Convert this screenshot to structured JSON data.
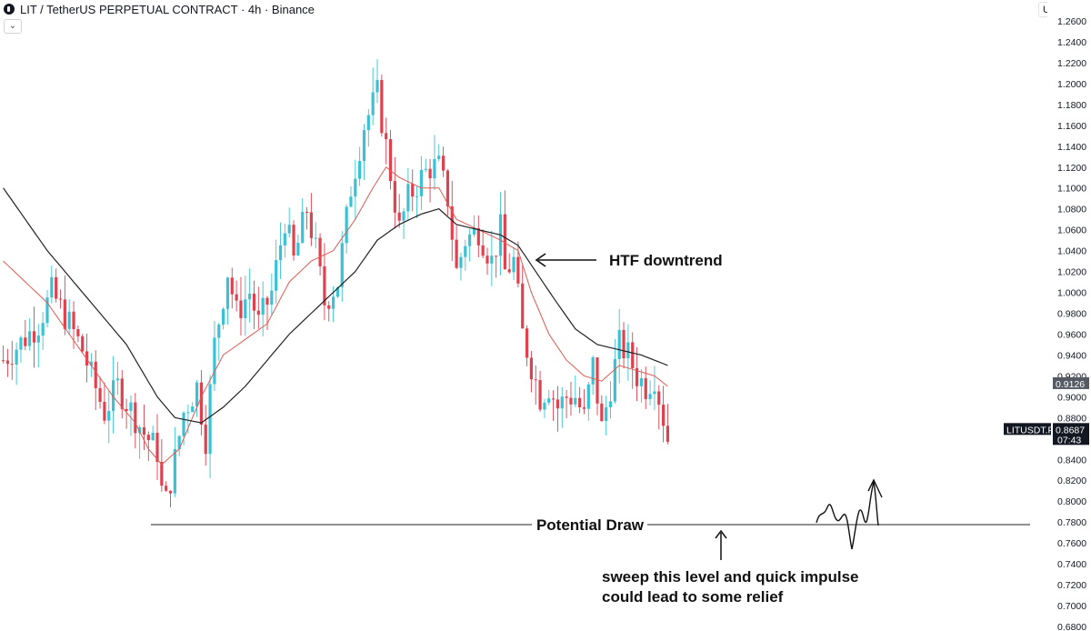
{
  "header": {
    "title": "LIT / TetherUS PERPETUAL CONTRACT · 4h · Binance",
    "collapse_icon": "chevron-down-icon",
    "currency": "USDT ⌄"
  },
  "price_labels": {
    "last_price": "0.9126",
    "symbol": "LITUSDT.P",
    "current_price": "0.8687",
    "countdown": "07:43"
  },
  "annotations": {
    "trend_label": "HTF downtrend",
    "level_label": "Potential Draw",
    "note_line1": "sweep this level and quick impulse",
    "note_line2": "could lead to some relief"
  },
  "colors": {
    "up": "#3ac2d4",
    "down": "#e0414f",
    "ma_fast": "#e05a52",
    "ma_slow": "#222222"
  },
  "chart_data": {
    "type": "candlestick",
    "ylim": [
      0.68,
      1.26
    ],
    "yticks": [
      "1.2600",
      "1.2400",
      "1.2200",
      "1.2000",
      "1.1800",
      "1.1600",
      "1.1400",
      "1.1200",
      "1.1000",
      "1.0800",
      "1.0600",
      "1.0400",
      "1.0200",
      "1.0000",
      "0.9800",
      "0.9600",
      "0.9400",
      "0.9200",
      "0.9000",
      "0.8800",
      "0.8600",
      "0.8400",
      "0.8200",
      "0.8000",
      "0.7800",
      "0.7600",
      "0.7400",
      "0.7200",
      "0.7000",
      "0.6800"
    ],
    "close_path": [
      [
        0,
        0.935
      ],
      [
        4,
        0.952
      ],
      [
        8,
        0.97
      ],
      [
        11,
        1.0
      ],
      [
        15,
        0.97
      ],
      [
        18,
        0.945
      ],
      [
        20,
        0.92
      ],
      [
        23,
        0.885
      ],
      [
        26,
        0.91
      ],
      [
        30,
        0.88
      ],
      [
        32,
        0.865
      ],
      [
        35,
        0.848
      ],
      [
        36,
        0.81
      ],
      [
        37,
        0.8
      ],
      [
        39,
        0.84
      ],
      [
        41,
        0.885
      ],
      [
        44,
        0.91
      ],
      [
        46,
        0.86
      ],
      [
        48,
        0.95
      ],
      [
        51,
        1.02
      ],
      [
        53,
        0.98
      ],
      [
        56,
        1.0
      ],
      [
        58,
        0.97
      ],
      [
        61,
        1.0
      ],
      [
        64,
        1.07
      ],
      [
        66,
        1.03
      ],
      [
        69,
        1.08
      ],
      [
        71,
        1.04
      ],
      [
        73,
        0.99
      ],
      [
        76,
        1.01
      ],
      [
        79,
        1.1
      ],
      [
        82,
        1.16
      ],
      [
        85,
        1.19
      ],
      [
        87,
        1.14
      ],
      [
        90,
        1.06
      ],
      [
        92,
        1.09
      ],
      [
        95,
        1.11
      ],
      [
        97,
        1.12
      ],
      [
        99,
        1.12
      ],
      [
        101,
        1.09
      ],
      [
        103,
        1.02
      ],
      [
        105,
        1.05
      ],
      [
        108,
        1.06
      ],
      [
        111,
        1.03
      ],
      [
        113,
        1.06
      ],
      [
        114,
        1.02
      ],
      [
        116,
        1.03
      ],
      [
        118,
        0.96
      ],
      [
        120,
        0.93
      ],
      [
        122,
        0.9
      ],
      [
        124,
        0.91
      ],
      [
        126,
        0.89
      ],
      [
        128,
        0.9
      ],
      [
        130,
        0.9
      ],
      [
        132,
        0.88
      ],
      [
        134,
        0.93
      ],
      [
        136,
        0.87
      ],
      [
        138,
        0.91
      ],
      [
        140,
        0.95
      ],
      [
        142,
        0.94
      ],
      [
        144,
        0.92
      ],
      [
        146,
        0.91
      ],
      [
        148,
        0.92
      ],
      [
        149,
        0.9
      ],
      [
        151,
        0.86
      ]
    ],
    "ma_fast": [
      [
        0,
        1.03
      ],
      [
        10,
        0.99
      ],
      [
        20,
        0.93
      ],
      [
        25,
        0.9
      ],
      [
        30,
        0.875
      ],
      [
        33,
        0.85
      ],
      [
        36,
        0.835
      ],
      [
        40,
        0.85
      ],
      [
        45,
        0.9
      ],
      [
        50,
        0.94
      ],
      [
        55,
        0.955
      ],
      [
        60,
        0.97
      ],
      [
        65,
        1.01
      ],
      [
        70,
        1.03
      ],
      [
        75,
        1.04
      ],
      [
        80,
        1.07
      ],
      [
        84,
        1.1
      ],
      [
        87,
        1.12
      ],
      [
        90,
        1.11
      ],
      [
        95,
        1.1
      ],
      [
        99,
        1.1
      ],
      [
        103,
        1.07
      ],
      [
        108,
        1.06
      ],
      [
        113,
        1.05
      ],
      [
        117,
        1.04
      ],
      [
        120,
        1.0
      ],
      [
        124,
        0.96
      ],
      [
        128,
        0.935
      ],
      [
        132,
        0.92
      ],
      [
        136,
        0.915
      ],
      [
        140,
        0.93
      ],
      [
        144,
        0.925
      ],
      [
        148,
        0.92
      ],
      [
        151,
        0.91
      ]
    ],
    "ma_slow": [
      [
        0,
        1.1
      ],
      [
        10,
        1.04
      ],
      [
        20,
        0.99
      ],
      [
        28,
        0.95
      ],
      [
        35,
        0.9
      ],
      [
        39,
        0.88
      ],
      [
        45,
        0.875
      ],
      [
        50,
        0.89
      ],
      [
        55,
        0.91
      ],
      [
        60,
        0.935
      ],
      [
        65,
        0.96
      ],
      [
        70,
        0.98
      ],
      [
        75,
        1.0
      ],
      [
        80,
        1.02
      ],
      [
        85,
        1.05
      ],
      [
        90,
        1.065
      ],
      [
        95,
        1.075
      ],
      [
        99,
        1.08
      ],
      [
        103,
        1.065
      ],
      [
        108,
        1.06
      ],
      [
        113,
        1.055
      ],
      [
        117,
        1.045
      ],
      [
        121,
        1.02
      ],
      [
        125,
        0.995
      ],
      [
        130,
        0.965
      ],
      [
        135,
        0.95
      ],
      [
        140,
        0.945
      ],
      [
        145,
        0.94
      ],
      [
        151,
        0.93
      ]
    ],
    "potential_draw": 0.7775
  }
}
